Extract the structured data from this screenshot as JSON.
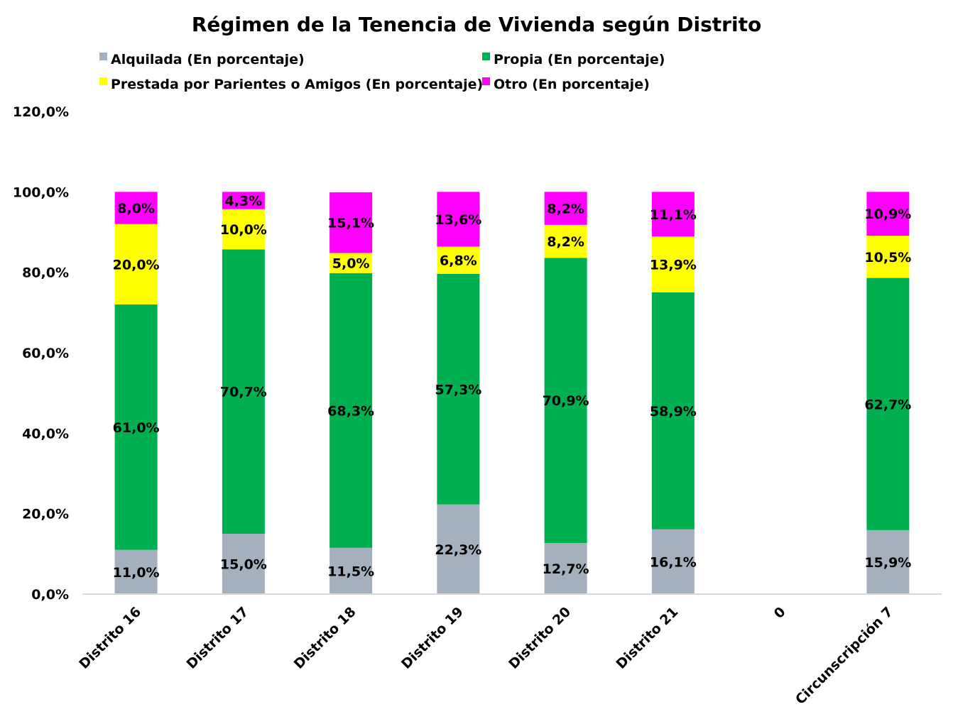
{
  "chart_data": {
    "type": "bar",
    "stacked": true,
    "title": "Régimen de la Tenencia de Vivienda según Distrito",
    "categories": [
      "Distrito 16",
      "Distrito 17",
      "Distrito 18",
      "Distrito 19",
      "Distrito 20",
      "Distrito 21",
      "0",
      "Circunscripción 7"
    ],
    "series": [
      {
        "name": "Alquilada (En porcentaje)",
        "color": "#a4b0be",
        "values": [
          11.0,
          15.0,
          11.5,
          22.3,
          12.7,
          16.1,
          null,
          15.9
        ],
        "labels": [
          "11,0%",
          "15,0%",
          "11,5%",
          "22,3%",
          "12,7%",
          "16,1%",
          "",
          "15,9%"
        ]
      },
      {
        "name": "Propia (En porcentaje)",
        "color": "#00b050",
        "values": [
          61.0,
          70.7,
          68.3,
          57.3,
          70.9,
          58.9,
          null,
          62.7
        ],
        "labels": [
          "61,0%",
          "70,7%",
          "68,3%",
          "57,3%",
          "70,9%",
          "58,9%",
          "",
          "62,7%"
        ]
      },
      {
        "name": "Prestada por Parientes o Amigos (En porcentaje)",
        "color": "#ffff00",
        "values": [
          20.0,
          10.0,
          5.0,
          6.8,
          8.2,
          13.9,
          null,
          10.5
        ],
        "labels": [
          "20,0%",
          "10,0%",
          "5,0%",
          "6,8%",
          "8,2%",
          "13,9%",
          "",
          "10,5%"
        ]
      },
      {
        "name": "Otro (En porcentaje)",
        "color": "#ff00ff",
        "values": [
          8.0,
          4.3,
          15.1,
          13.6,
          8.2,
          11.1,
          null,
          10.9
        ],
        "labels": [
          "8,0%",
          "4,3%",
          "15,1%",
          "13,6%",
          "8,2%",
          "11,1%",
          "",
          "10,9%"
        ]
      }
    ],
    "ylim": [
      0,
      120
    ],
    "yticks": [
      0,
      20,
      40,
      60,
      80,
      100,
      120
    ],
    "ytick_labels": [
      "0,0%",
      "20,0%",
      "40,0%",
      "60,0%",
      "80,0%",
      "100,0%",
      "120,0%"
    ],
    "grid": false,
    "legend_position": "top"
  }
}
